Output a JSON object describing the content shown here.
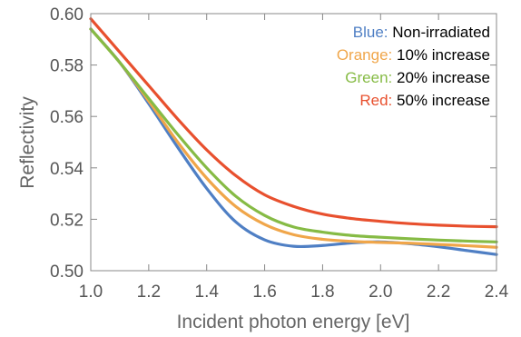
{
  "chart_data": {
    "type": "line",
    "title": "",
    "xlabel": "Incident photon energy [eV]",
    "ylabel": "Reflectivity",
    "xlim": [
      1.0,
      2.4
    ],
    "ylim": [
      0.5,
      0.6
    ],
    "x_ticks": [
      "1.0",
      "1.2",
      "1.4",
      "1.6",
      "1.8",
      "2.0",
      "2.2",
      "2.4"
    ],
    "y_ticks": [
      "0.50",
      "0.52",
      "0.54",
      "0.56",
      "0.58",
      "0.60"
    ],
    "grid": false,
    "legend_position": "top-right",
    "legend": [
      {
        "color_word": "Blue:",
        "label": "Non-irradiated",
        "color": "#4f7fc4"
      },
      {
        "color_word": "Orange:",
        "label": "10% increase",
        "color": "#f0a64a"
      },
      {
        "color_word": "Green:",
        "label": "20% increase",
        "color": "#86bb45"
      },
      {
        "color_word": "Red:",
        "label": "50% increase",
        "color": "#e8502e"
      }
    ],
    "series": [
      {
        "color": "#4f7fc4",
        "x": [
          1.0,
          1.1,
          1.2,
          1.3,
          1.4,
          1.5,
          1.6,
          1.7,
          1.8,
          1.9,
          2.0,
          2.1,
          2.2,
          2.3,
          2.4
        ],
        "y": [
          0.594,
          0.581,
          0.565,
          0.548,
          0.532,
          0.519,
          0.512,
          0.5095,
          0.5098,
          0.5108,
          0.5112,
          0.5105,
          0.5093,
          0.5078,
          0.5063
        ]
      },
      {
        "color": "#f0a64a",
        "x": [
          1.0,
          1.1,
          1.2,
          1.3,
          1.4,
          1.5,
          1.6,
          1.7,
          1.8,
          1.9,
          2.0,
          2.1,
          2.2,
          2.3,
          2.4
        ],
        "y": [
          0.594,
          0.581,
          0.566,
          0.55,
          0.536,
          0.525,
          0.518,
          0.514,
          0.5122,
          0.5114,
          0.511,
          0.5107,
          0.5102,
          0.5097,
          0.5091
        ]
      },
      {
        "color": "#86bb45",
        "x": [
          1.0,
          1.1,
          1.2,
          1.3,
          1.4,
          1.5,
          1.6,
          1.7,
          1.8,
          1.9,
          2.0,
          2.1,
          2.2,
          2.3,
          2.4
        ],
        "y": [
          0.594,
          0.581,
          0.567,
          0.553,
          0.54,
          0.529,
          0.5215,
          0.517,
          0.515,
          0.5137,
          0.513,
          0.5124,
          0.5119,
          0.5115,
          0.5112
        ]
      },
      {
        "color": "#e8502e",
        "x": [
          1.0,
          1.1,
          1.2,
          1.3,
          1.4,
          1.5,
          1.6,
          1.7,
          1.8,
          1.9,
          2.0,
          2.1,
          2.2,
          2.3,
          2.4
        ],
        "y": [
          0.598,
          0.585,
          0.572,
          0.559,
          0.547,
          0.537,
          0.5295,
          0.525,
          0.522,
          0.5203,
          0.5192,
          0.5183,
          0.5177,
          0.5173,
          0.5171
        ]
      }
    ]
  }
}
